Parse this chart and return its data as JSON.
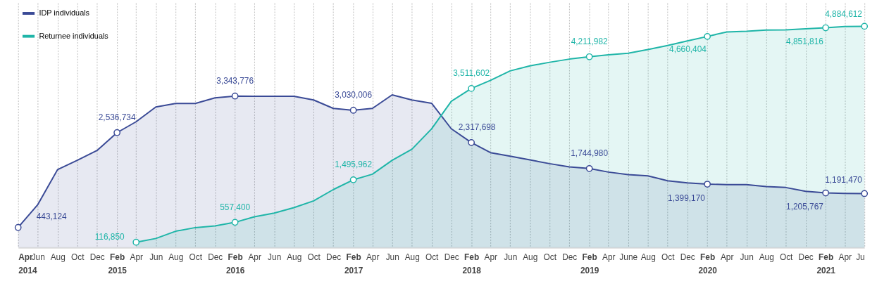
{
  "chart_data": {
    "type": "area",
    "x": [
      "2014-04",
      "2014-06",
      "2014-08",
      "2014-10",
      "2014-12",
      "2015-02",
      "2015-04",
      "2015-06",
      "2015-08",
      "2015-10",
      "2015-12",
      "2016-02",
      "2016-04",
      "2016-06",
      "2016-08",
      "2016-10",
      "2016-12",
      "2017-02",
      "2017-04",
      "2017-06",
      "2017-08",
      "2017-10",
      "2017-12",
      "2018-02",
      "2018-04",
      "2018-06",
      "2018-08",
      "2018-10",
      "2018-12",
      "2019-02",
      "2019-04",
      "2019-06",
      "2019-08",
      "2019-10",
      "2019-12",
      "2020-02",
      "2020-04",
      "2020-06",
      "2020-08",
      "2020-10",
      "2020-12",
      "2021-02",
      "2021-04",
      "2021-06"
    ],
    "series": [
      {
        "name": "IDP individuals",
        "color": "#3a4a96",
        "values": [
          443124,
          950000,
          1720000,
          1925000,
          2142000,
          2536734,
          2777000,
          3103000,
          3180000,
          3180000,
          3305000,
          3343776,
          3340000,
          3340000,
          3340000,
          3258000,
          3072000,
          3030006,
          3072000,
          3371000,
          3258000,
          3185000,
          2622000,
          2317698,
          2095000,
          2018000,
          1935000,
          1852000,
          1780000,
          1744980,
          1666000,
          1609000,
          1583000,
          1475000,
          1427000,
          1399170,
          1390000,
          1390000,
          1345000,
          1325000,
          1242000,
          1205767,
          1195000,
          1191470
        ],
        "value_labels": [
          "443,124",
          null,
          null,
          null,
          null,
          "2,536,734",
          null,
          null,
          null,
          null,
          null,
          "3,343,776",
          null,
          null,
          null,
          null,
          null,
          "3,030,006",
          null,
          null,
          null,
          null,
          null,
          "2,317,698",
          null,
          null,
          null,
          null,
          null,
          "1,744,980",
          null,
          null,
          null,
          null,
          null,
          "1,399,170",
          null,
          null,
          null,
          null,
          null,
          "1,205,767",
          null,
          "1,191,470"
        ]
      },
      {
        "name": "Returnee individuals",
        "color": "#1fb5a8",
        "values": [
          null,
          null,
          null,
          null,
          null,
          null,
          116850,
          200000,
          360000,
          440000,
          477000,
          557400,
          680000,
          760000,
          880000,
          1030000,
          1280000,
          1495962,
          1620000,
          1925000,
          2170000,
          2620000,
          3230000,
          3511602,
          3690000,
          3900000,
          4010000,
          4090000,
          4160000,
          4211982,
          4255000,
          4290000,
          4370000,
          4460000,
          4560000,
          4660404,
          4760000,
          4775000,
          4800000,
          4805000,
          4830000,
          4851816,
          4878000,
          4884612
        ],
        "value_labels": [
          null,
          null,
          null,
          null,
          null,
          null,
          "116,850",
          null,
          null,
          null,
          null,
          "557,400",
          null,
          null,
          null,
          null,
          null,
          "1,495,962",
          null,
          null,
          null,
          null,
          null,
          "3,511,602",
          null,
          null,
          null,
          null,
          null,
          "4,211,982",
          null,
          null,
          null,
          null,
          null,
          "4,660,404",
          null,
          null,
          null,
          null,
          null,
          "4,851,816",
          null,
          "4,884,612"
        ]
      }
    ],
    "xlim": [
      "2014-04",
      "2021-06"
    ],
    "xticks": [
      {
        "value": "2014-04",
        "label": "Apr\n2014"
      },
      {
        "value": "2014-06",
        "label": "Jun"
      },
      {
        "value": "2014-08",
        "label": "Aug"
      },
      {
        "value": "2014-10",
        "label": "Oct"
      },
      {
        "value": "2014-12",
        "label": "Dec"
      },
      {
        "value": "2015-02",
        "label": "Feb\n2015"
      },
      {
        "value": "2015-04",
        "label": "Apr"
      },
      {
        "value": "2015-06",
        "label": "Jun"
      },
      {
        "value": "2015-08",
        "label": "Aug"
      },
      {
        "value": "2015-10",
        "label": "Oct"
      },
      {
        "value": "2015-12",
        "label": "Dec"
      },
      {
        "value": "2016-02",
        "label": "Feb\n2016"
      },
      {
        "value": "2016-04",
        "label": "Apr"
      },
      {
        "value": "2016-06",
        "label": "Jun"
      },
      {
        "value": "2016-08",
        "label": "Aug"
      },
      {
        "value": "2016-10",
        "label": "Oct"
      },
      {
        "value": "2016-12",
        "label": "Dec"
      },
      {
        "value": "2017-02",
        "label": "Feb\n2017"
      },
      {
        "value": "2017-04",
        "label": "Apr"
      },
      {
        "value": "2017-06",
        "label": "Jun"
      },
      {
        "value": "2017-08",
        "label": "Aug"
      },
      {
        "value": "2017-10",
        "label": "Oct"
      },
      {
        "value": "2017-12",
        "label": "Dec"
      },
      {
        "value": "2018-02",
        "label": "Feb\n2018"
      },
      {
        "value": "2018-04",
        "label": "Apr"
      },
      {
        "value": "2018-06",
        "label": "Jun"
      },
      {
        "value": "2018-08",
        "label": "Aug"
      },
      {
        "value": "2018-10",
        "label": "Oct"
      },
      {
        "value": "2018-12",
        "label": "Dec"
      },
      {
        "value": "2019-02",
        "label": "Feb\n2019"
      },
      {
        "value": "2019-04",
        "label": "Apr"
      },
      {
        "value": "2019-06",
        "label": "June"
      },
      {
        "value": "2019-08",
        "label": "Aug"
      },
      {
        "value": "2019-10",
        "label": "Oct"
      },
      {
        "value": "2019-12",
        "label": "Dec"
      },
      {
        "value": "2020-02",
        "label": "Feb\n2020"
      },
      {
        "value": "2020-04",
        "label": "Apr"
      },
      {
        "value": "2020-06",
        "label": "Jun"
      },
      {
        "value": "2020-08",
        "label": "Aug"
      },
      {
        "value": "2020-10",
        "label": "Oct"
      },
      {
        "value": "2020-12",
        "label": "Dec"
      },
      {
        "value": "2021-02",
        "label": "Feb\n2021"
      },
      {
        "value": "2021-04",
        "label": "Apr"
      },
      {
        "value": "2021-06",
        "label": "Ju"
      }
    ],
    "ylim": [
      0,
      5400000
    ],
    "tick_labels": "x",
    "grid": "x",
    "legend": "top left",
    "line_style": "solid"
  }
}
